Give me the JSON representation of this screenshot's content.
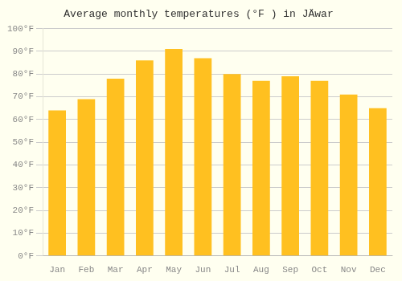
{
  "chart_data": {
    "type": "bar",
    "title": "Average monthly temperatures (°F ) in JÄwar",
    "categories": [
      "Jan",
      "Feb",
      "Mar",
      "Apr",
      "May",
      "Jun",
      "Jul",
      "Aug",
      "Sep",
      "Oct",
      "Nov",
      "Dec"
    ],
    "values": [
      64,
      69,
      78,
      86,
      91,
      87,
      80,
      77,
      79,
      77,
      71,
      65
    ],
    "color": "#FFC020",
    "ylim": [
      0,
      100
    ],
    "yticks": [
      {
        "value": 0,
        "label": "0°F"
      },
      {
        "value": 10,
        "label": "10°F"
      },
      {
        "value": 20,
        "label": "20°F"
      },
      {
        "value": 30,
        "label": "30°F"
      },
      {
        "value": 40,
        "label": "40°F"
      },
      {
        "value": 50,
        "label": "50°F"
      },
      {
        "value": 60,
        "label": "60°F"
      },
      {
        "value": 70,
        "label": "70°F"
      },
      {
        "value": 80,
        "label": "80°F"
      },
      {
        "value": 90,
        "label": "90°F"
      },
      {
        "value": 100,
        "label": "100°F"
      }
    ],
    "grid": true
  }
}
